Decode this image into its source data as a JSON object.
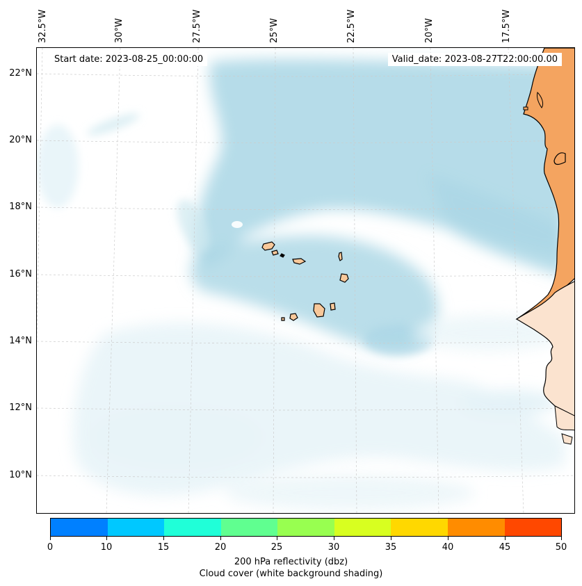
{
  "map": {
    "start_date": "Start date: 2023-08-25_00:00:00",
    "valid_date": "Valid_date: 2023-08-27T22:00:00.00",
    "lon_labels": [
      "32.5°W",
      "30°W",
      "27.5°W",
      "25°W",
      "22.5°W",
      "20°W",
      "17.5°W"
    ],
    "lat_labels": [
      "22°N",
      "20°N",
      "18°N",
      "16°N",
      "14°N",
      "12°N",
      "10°N"
    ],
    "features": [
      "Cabo Verde islands",
      "West African coast (Mauritania, Senegal, Gambia, Guinea-Bissau)",
      "cloud cover shading",
      "graticule"
    ],
    "colors": {
      "land": "#f4a460",
      "island": "#f8c89a",
      "cloud": "#a9d6e5",
      "coast": "#000000"
    }
  },
  "colorbar": {
    "ticks": [
      "0",
      "10",
      "15",
      "20",
      "25",
      "30",
      "35",
      "40",
      "45",
      "50"
    ],
    "colors": [
      "#0080ff",
      "#00c8ff",
      "#20ffd8",
      "#60ff90",
      "#98ff50",
      "#d8ff20",
      "#ffd800",
      "#ff8c00",
      "#ff4800"
    ],
    "label_line1": "200 hPa reflectivity (dbz)",
    "label_line2": "Cloud cover (white background shading)"
  }
}
